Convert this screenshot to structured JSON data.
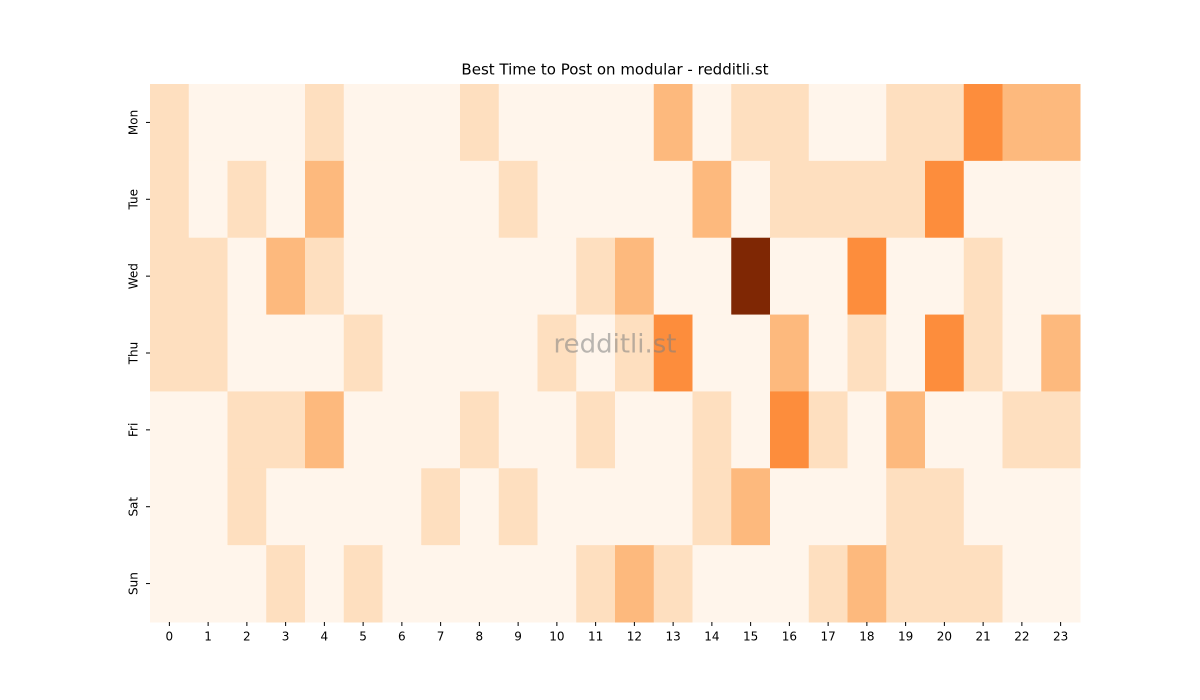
{
  "chart_data": {
    "type": "heatmap",
    "title": "Best Time to Post on modular - redditli.st",
    "x": [
      0,
      1,
      2,
      3,
      4,
      5,
      6,
      7,
      8,
      9,
      10,
      11,
      12,
      13,
      14,
      15,
      16,
      17,
      18,
      19,
      20,
      21,
      22,
      23
    ],
    "y": [
      "Mon",
      "Tue",
      "Wed",
      "Thu",
      "Fri",
      "Sat",
      "Sun"
    ],
    "values": [
      [
        1,
        0,
        0,
        0,
        1,
        0,
        0,
        0,
        1,
        0,
        0,
        0,
        0,
        2,
        0,
        1,
        1,
        0,
        0,
        1,
        1,
        3,
        2,
        2
      ],
      [
        1,
        0,
        1,
        0,
        2,
        0,
        0,
        0,
        0,
        1,
        0,
        0,
        0,
        0,
        2,
        0,
        1,
        1,
        1,
        1,
        3,
        0,
        0,
        0
      ],
      [
        1,
        1,
        0,
        2,
        1,
        0,
        0,
        0,
        0,
        0,
        0,
        1,
        2,
        0,
        0,
        6,
        0,
        0,
        3,
        0,
        0,
        1,
        0,
        0
      ],
      [
        1,
        1,
        0,
        0,
        0,
        1,
        0,
        0,
        0,
        0,
        1,
        0,
        1,
        3,
        0,
        0,
        2,
        0,
        1,
        0,
        3,
        1,
        0,
        2
      ],
      [
        0,
        0,
        1,
        1,
        2,
        0,
        0,
        0,
        1,
        0,
        0,
        1,
        0,
        0,
        1,
        0,
        3,
        1,
        0,
        2,
        0,
        0,
        1,
        1
      ],
      [
        0,
        0,
        1,
        0,
        0,
        0,
        0,
        1,
        0,
        1,
        0,
        0,
        0,
        0,
        1,
        2,
        0,
        0,
        0,
        1,
        1,
        0,
        0,
        0
      ],
      [
        0,
        0,
        0,
        1,
        0,
        1,
        0,
        0,
        0,
        0,
        0,
        1,
        2,
        1,
        0,
        0,
        0,
        1,
        2,
        1,
        1,
        1,
        0,
        0
      ]
    ],
    "colormap": "Oranges",
    "watermark": "redditli.st"
  }
}
